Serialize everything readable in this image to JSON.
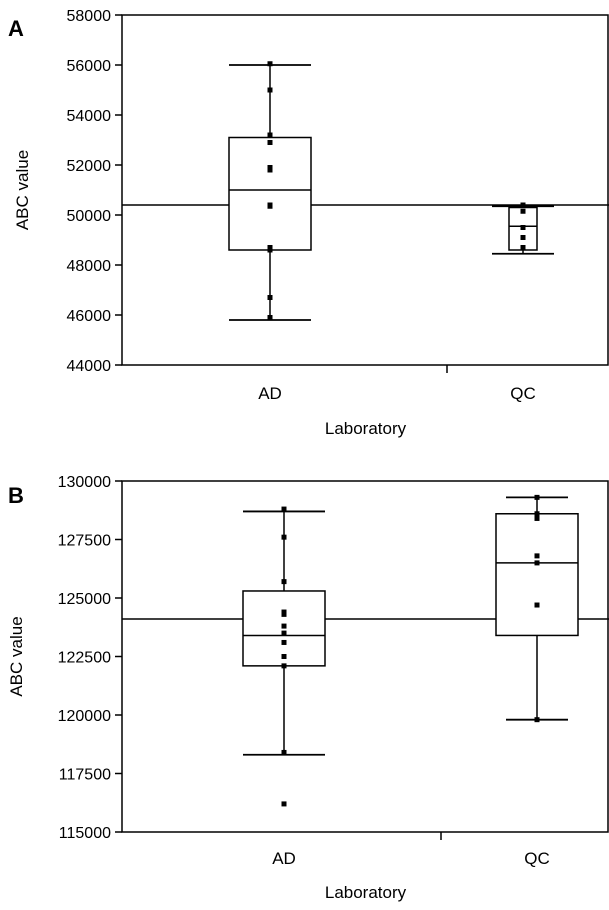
{
  "chart_data": [
    {
      "type": "box",
      "panel_label": "A",
      "title": "",
      "xlabel": "Laboratory",
      "ylabel": "ABC value",
      "ylim": [
        44000,
        58000
      ],
      "yticks": [
        "44000",
        "46000",
        "48000",
        "50000",
        "52000",
        "54000",
        "56000",
        "58000"
      ],
      "categories": [
        "AD",
        "QC"
      ],
      "reference_line": 50400,
      "boxes": [
        {
          "category": "AD",
          "whisker_low": 45800,
          "q1": 48600,
          "median": 51000,
          "q3": 53100,
          "whisker_high": 56000,
          "points": [
            45900,
            46700,
            48600,
            48700,
            50400,
            50350,
            51800,
            51900,
            52900,
            53200,
            55000,
            56050
          ]
        },
        {
          "category": "QC",
          "whisker_low": 48450,
          "q1": 48600,
          "median": 49550,
          "q3": 50300,
          "whisker_high": 50350,
          "points": [
            48700,
            49100,
            49500,
            50150,
            50400
          ]
        }
      ]
    },
    {
      "type": "box",
      "panel_label": "B",
      "title": "",
      "xlabel": "Laboratory",
      "ylabel": "ABC value",
      "ylim": [
        115000,
        130000
      ],
      "yticks": [
        "115000",
        "117500",
        "120000",
        "122500",
        "125000",
        "127500",
        "130000"
      ],
      "categories": [
        "AD",
        "QC"
      ],
      "reference_line": 124100,
      "boxes": [
        {
          "category": "AD",
          "whisker_low": 118300,
          "q1": 122100,
          "median": 123400,
          "q3": 125300,
          "whisker_high": 128700,
          "points": [
            116200,
            118400,
            122100,
            122500,
            123100,
            123500,
            123800,
            124300,
            124400,
            125700,
            127600,
            128800
          ]
        },
        {
          "category": "QC",
          "whisker_low": 119800,
          "q1": 123400,
          "median": 126500,
          "q3": 128600,
          "whisker_high": 129300,
          "points": [
            119800,
            124700,
            126500,
            126800,
            128400,
            128600,
            129300
          ]
        }
      ]
    }
  ]
}
